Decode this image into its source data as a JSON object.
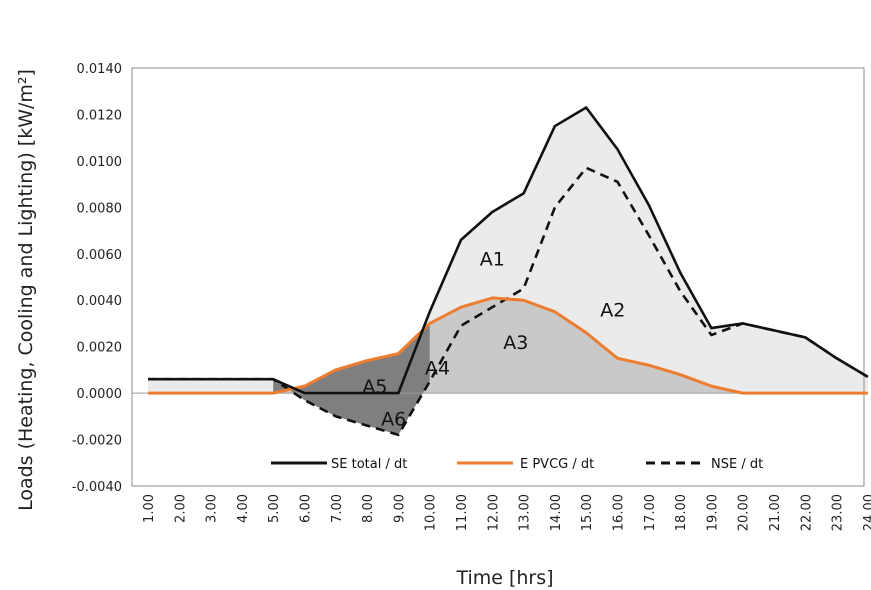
{
  "chart_data": {
    "type": "line",
    "xlabel": "Time [hrs]",
    "ylabel": "Loads (Heating, Cooling and Lighting) [kW/m²]",
    "categories": [
      "1.00",
      "2.00",
      "3.00",
      "4.00",
      "5.00",
      "6.00",
      "7.00",
      "8.00",
      "9.00",
      "10.00",
      "11.00",
      "12.00",
      "13.00",
      "14.00",
      "15.00",
      "16.00",
      "17.00",
      "18.00",
      "19.00",
      "20.00",
      "21.00",
      "22.00",
      "23.00",
      "24.00"
    ],
    "x": [
      1,
      2,
      3,
      4,
      5,
      6,
      7,
      8,
      9,
      10,
      11,
      12,
      13,
      14,
      15,
      16,
      17,
      18,
      19,
      20,
      21,
      22,
      23,
      24
    ],
    "ylim": [
      -0.004,
      0.014
    ],
    "yticks": [
      "0.0140",
      "0.0120",
      "0.0100",
      "0.0080",
      "0.0060",
      "0.0040",
      "0.0020",
      "0.0000",
      "-0.0020",
      "-0.0040"
    ],
    "ytick_values": [
      0.014,
      0.012,
      0.01,
      0.008,
      0.006,
      0.004,
      0.002,
      0,
      -0.002,
      -0.004
    ],
    "grid": false,
    "legend_position": "bottom-inside",
    "series": [
      {
        "name": "SE total / dt",
        "color": "#111111",
        "style": "solid",
        "values": [
          0.0006,
          0.0006,
          0.0006,
          0.0006,
          0.0006,
          0.0,
          0.0,
          0.0,
          0.0,
          0.0035,
          0.0066,
          0.0078,
          0.0086,
          0.0115,
          0.0123,
          0.0105,
          0.0081,
          0.0052,
          0.0028,
          0.003,
          0.0027,
          0.0024,
          0.0015,
          0.0007
        ]
      },
      {
        "name": "E PVCG / dt",
        "color": "#ed7d31",
        "style": "solid",
        "values": [
          0.0,
          0.0,
          0.0,
          0.0,
          0.0,
          0.0003,
          0.001,
          0.0014,
          0.0017,
          0.003,
          0.0037,
          0.0041,
          0.004,
          0.0035,
          0.0026,
          0.0015,
          0.0012,
          0.0008,
          0.0003,
          0.0,
          0.0,
          0.0,
          0.0,
          0.0
        ]
      },
      {
        "name": "NSE / dt",
        "color": "#111111",
        "style": "dashed",
        "values": [
          0.0006,
          0.0006,
          0.0006,
          0.0006,
          0.0006,
          -0.0003,
          -0.001,
          -0.0014,
          -0.0018,
          0.0005,
          0.0029,
          0.0037,
          0.0045,
          0.008,
          0.0097,
          0.0091,
          0.0068,
          0.0044,
          0.0025,
          0.003,
          0.0027,
          0.0024,
          0.0015,
          0.0007
        ]
      }
    ],
    "area_fills": {
      "light": "#ebebeb",
      "mid": "#c9c9c9",
      "dark": "#7f7f7f"
    },
    "annotations": [
      {
        "text": "A1",
        "x": 12.0,
        "y": 0.0058
      },
      {
        "text": "A2",
        "x": 15.85,
        "y": 0.0036
      },
      {
        "text": "A3",
        "x": 12.75,
        "y": 0.0022
      },
      {
        "text": "A4",
        "x": 10.25,
        "y": 0.0011
      },
      {
        "text": "A5",
        "x": 8.25,
        "y": 0.0003
      },
      {
        "text": "A6",
        "x": 8.85,
        "y": -0.0011
      }
    ]
  }
}
